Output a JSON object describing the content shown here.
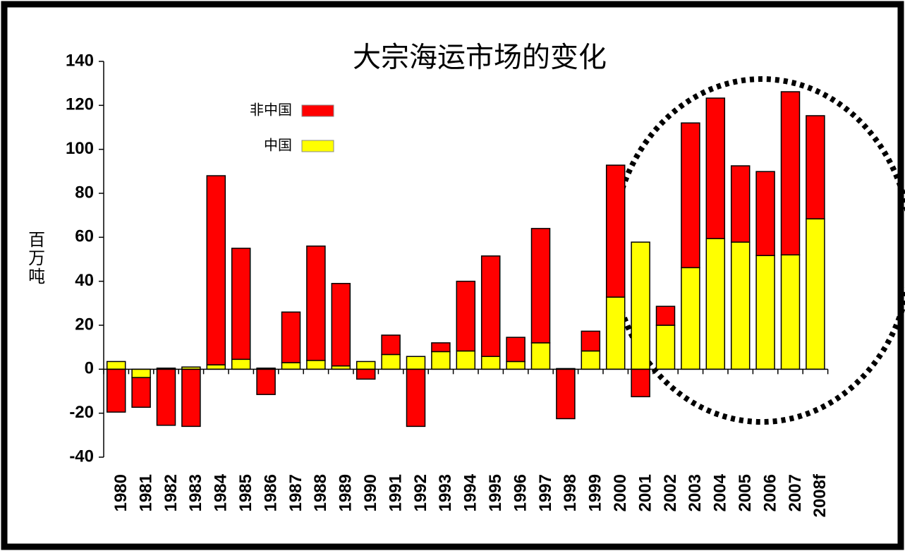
{
  "chart_data": {
    "type": "bar",
    "stacked": true,
    "title": "大宗海运市场的变化",
    "y_label": "百万吨",
    "categories": [
      "1980",
      "1981",
      "1982",
      "1983",
      "1984",
      "1985",
      "1986",
      "1987",
      "1988",
      "1989",
      "1990",
      "1991",
      "1992",
      "1993",
      "1994",
      "1995",
      "1996",
      "1997",
      "1998",
      "1999",
      "2000",
      "2001",
      "2002",
      "2003",
      "2004",
      "2005",
      "2006",
      "2007",
      "2008f"
    ],
    "series": [
      {
        "name": "中国",
        "color": "#ffff00",
        "values": [
          3.5,
          -3.8,
          0.5,
          1,
          2,
          4.5,
          0.5,
          3,
          4,
          1.5,
          3.5,
          6.7,
          5.8,
          8,
          8.3,
          5.8,
          3.5,
          12,
          0.3,
          8.3,
          32.8,
          57.8,
          20,
          46.2,
          59.4,
          57.8,
          51.7,
          52,
          68.4
        ]
      },
      {
        "name": "非中国",
        "color": "#ff0000",
        "values": [
          -19.5,
          -13.5,
          -25.5,
          -26,
          86,
          50.5,
          -11.5,
          23,
          52,
          37.5,
          -4.5,
          8.8,
          -26,
          4,
          31.7,
          45.7,
          11,
          52,
          -22.5,
          9,
          60,
          -12.5,
          8.6,
          65.8,
          63.9,
          34.7,
          38.2,
          74.2,
          46.9
        ]
      }
    ],
    "ylim": [
      -40,
      140
    ],
    "yticks": [
      -40,
      -20,
      0,
      20,
      40,
      60,
      80,
      100,
      120,
      140
    ]
  }
}
